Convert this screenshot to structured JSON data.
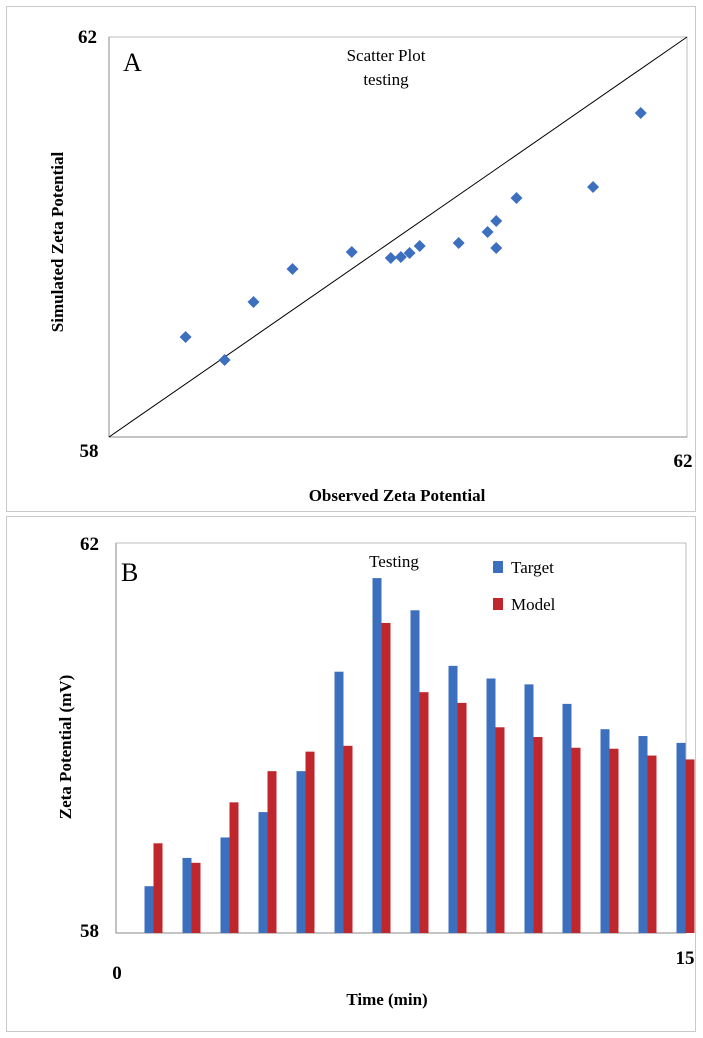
{
  "chart_data": [
    {
      "type": "scatter",
      "panel_letter": "A",
      "title": "Scatter Plot",
      "subtitle": "testing",
      "xlabel": "Observed Zeta Potential",
      "ylabel": "Simulated Zeta Potential",
      "xlim": [
        58,
        62
      ],
      "ylim": [
        58,
        62
      ],
      "x_tick_labels": [
        "58",
        "62"
      ],
      "y_tick_labels": [
        "62"
      ],
      "reference_line": "y = x",
      "marker": "diamond",
      "marker_color": "#3d6fbf",
      "points": [
        {
          "x": 58.53,
          "y": 59.0
        },
        {
          "x": 58.8,
          "y": 58.77
        },
        {
          "x": 59.0,
          "y": 59.35
        },
        {
          "x": 59.27,
          "y": 59.68
        },
        {
          "x": 59.68,
          "y": 59.85
        },
        {
          "x": 59.95,
          "y": 59.79
        },
        {
          "x": 60.02,
          "y": 59.8
        },
        {
          "x": 60.08,
          "y": 59.84
        },
        {
          "x": 60.15,
          "y": 59.91
        },
        {
          "x": 60.42,
          "y": 59.94
        },
        {
          "x": 60.62,
          "y": 60.05
        },
        {
          "x": 60.68,
          "y": 60.16
        },
        {
          "x": 60.68,
          "y": 59.89
        },
        {
          "x": 60.82,
          "y": 60.39
        },
        {
          "x": 61.35,
          "y": 60.5
        },
        {
          "x": 61.68,
          "y": 61.24
        }
      ]
    },
    {
      "type": "bar",
      "panel_letter": "B",
      "title": "Testing",
      "xlabel": "Time (min)",
      "ylabel": "Zeta Potential (mV)",
      "xlim": [
        0,
        15
      ],
      "ylim": [
        58,
        62
      ],
      "x_tick_labels": [
        "0",
        "15"
      ],
      "y_tick_labels": [
        "62",
        "58"
      ],
      "x": [
        1,
        2,
        3,
        4,
        5,
        6,
        7,
        8,
        9,
        10,
        11,
        12,
        13,
        14,
        15
      ],
      "legend_position": "top-right",
      "series": [
        {
          "name": "Target",
          "color": "#3d6fbf",
          "values": [
            58.48,
            58.77,
            58.98,
            59.24,
            59.66,
            60.68,
            61.64,
            61.31,
            60.74,
            60.61,
            60.55,
            60.35,
            60.09,
            60.02,
            59.95
          ]
        },
        {
          "name": "Model",
          "color": "#c0272d",
          "values": [
            58.92,
            58.72,
            59.34,
            59.66,
            59.86,
            59.92,
            61.18,
            60.47,
            60.36,
            60.11,
            60.01,
            59.9,
            59.89,
            59.82,
            59.78
          ]
        }
      ]
    }
  ]
}
